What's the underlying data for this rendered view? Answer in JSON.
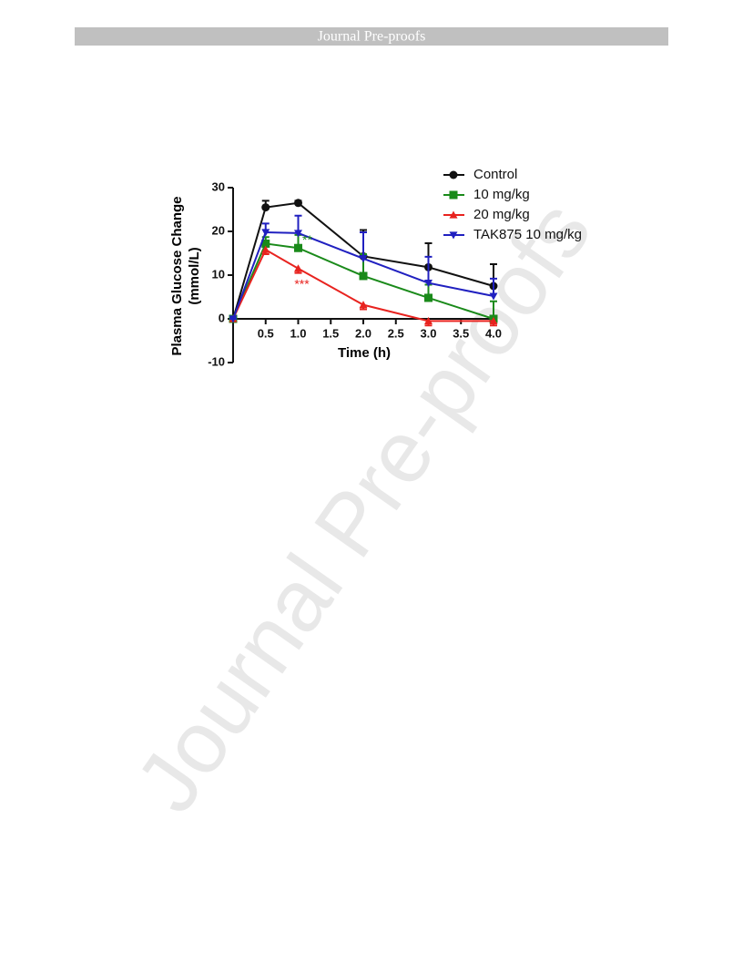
{
  "header": {
    "title": "Journal Pre-proofs"
  },
  "watermark": {
    "text": "Journal Pre-proofs"
  },
  "chart_data": {
    "type": "line",
    "xlabel": "Time (h)",
    "ylabel": [
      "Plasma Glucose Change",
      "(mmol/L)"
    ],
    "x": [
      0,
      0.5,
      1,
      2,
      3,
      4
    ],
    "xlim": [
      0,
      4
    ],
    "xticks": [
      0.5,
      {
        "value": 1,
        "label": "1.0"
      },
      1.5,
      {
        "value": 2,
        "label": "2.0"
      },
      2.5,
      {
        "value": 3,
        "label": "3.0"
      },
      3.5,
      {
        "value": 4,
        "label": "4.0"
      }
    ],
    "ylim": [
      -10,
      30
    ],
    "yticks": [
      -10,
      0,
      10,
      20,
      30
    ],
    "legend": "top-right",
    "series": [
      {
        "name": "Control",
        "color": "#111111",
        "marker": "circle",
        "values": [
          0,
          25.5,
          26.5,
          14.3,
          11.8,
          7.5
        ],
        "errors": [
          0,
          1.5,
          0.5,
          6,
          5.5,
          5
        ]
      },
      {
        "name": "10 mg/kg",
        "color": "#1a8a1a",
        "marker": "square",
        "values": [
          0,
          17.2,
          16.2,
          9.8,
          4.8,
          0
        ],
        "errors": [
          0,
          1.5,
          3,
          5,
          3,
          4
        ]
      },
      {
        "name": "20 mg/kg",
        "color": "#e8231f",
        "marker": "triangle-up",
        "values": [
          0,
          15.8,
          11.5,
          3.2,
          -0.5,
          -0.5
        ],
        "errors": [
          0,
          1,
          1,
          1,
          1,
          1
        ]
      },
      {
        "name": "TAK875 10 mg/kg",
        "color": "#2020c0",
        "marker": "triangle-down",
        "values": [
          0,
          19.8,
          19.6,
          13.8,
          8.2,
          5.2
        ],
        "errors": [
          0,
          2,
          4,
          6,
          6,
          4
        ]
      }
    ],
    "annotations": [
      {
        "text": "**",
        "color": "#1a8a1a"
      },
      {
        "text": "***",
        "color": "#e8231f"
      }
    ]
  }
}
